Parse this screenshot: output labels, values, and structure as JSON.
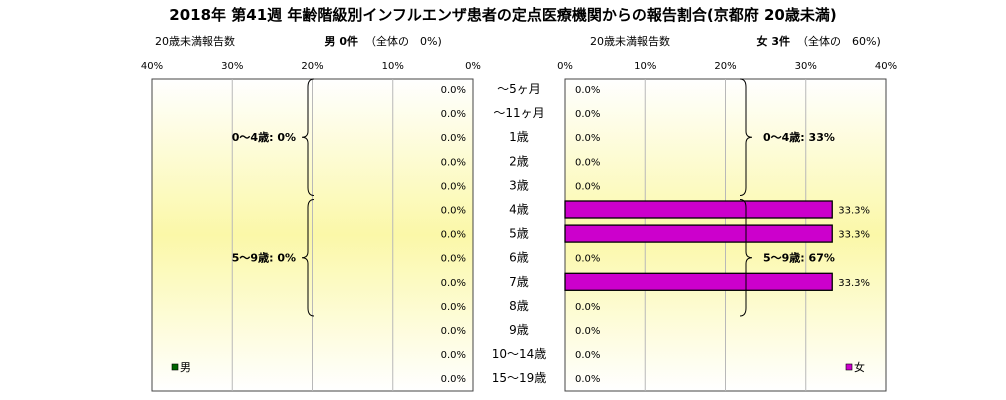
{
  "title": "2018年 第41週 年齢階級別インフルエンザ患者の定点医療機関からの報告割合(京都府 20歳未満)",
  "left_panel": {
    "subtitle": "20歳未満報告数",
    "summary_bold": "男 0件",
    "summary_rest": "（全体の　0%)",
    "legend": "男",
    "groups": [
      {
        "label": "0～4歳: 0%",
        "from": 0,
        "to": 5
      },
      {
        "label": "5～9歳: 0%",
        "from": 5,
        "to": 10
      }
    ]
  },
  "right_panel": {
    "subtitle": "20歳未満報告数",
    "summary_bold": "女 3件",
    "summary_rest": "（全体の　60%)",
    "legend": "女",
    "groups": [
      {
        "label": "0～4歳: 33%",
        "from": 0,
        "to": 5
      },
      {
        "label": "5～9歳: 67%",
        "from": 5,
        "to": 10
      }
    ]
  },
  "colors": {
    "male": "#006400",
    "female": "#cc00cc",
    "plot_gradient_edge": "#ffffff",
    "plot_gradient_center": "#fbf8a8"
  },
  "chart_data": {
    "type": "bar",
    "orientation": "horizontal-butterfly",
    "categories": [
      "～5ヶ月",
      "～11ヶ月",
      "1歳",
      "2歳",
      "3歳",
      "4歳",
      "5歳",
      "6歳",
      "7歳",
      "8歳",
      "9歳",
      "10～14歳",
      "15～19歳"
    ],
    "series": [
      {
        "name": "男",
        "values": [
          0,
          0,
          0,
          0,
          0,
          0,
          0,
          0,
          0,
          0,
          0,
          0,
          0
        ],
        "labels": [
          "0.0%",
          "0.0%",
          "0.0%",
          "0.0%",
          "0.0%",
          "0.0%",
          "0.0%",
          "0.0%",
          "0.0%",
          "0.0%",
          "0.0%",
          "0.0%",
          "0.0%"
        ]
      },
      {
        "name": "女",
        "values": [
          0,
          0,
          0,
          0,
          0,
          33.3,
          33.3,
          0,
          33.3,
          0,
          0,
          0,
          0
        ],
        "labels": [
          "0.0%",
          "0.0%",
          "0.0%",
          "0.0%",
          "0.0%",
          "33.3%",
          "33.3%",
          "0.0%",
          "33.3%",
          "0.0%",
          "0.0%",
          "0.0%",
          "0.0%"
        ]
      }
    ],
    "xlim": [
      0,
      40
    ],
    "ticks": [
      "0%",
      "10%",
      "20%",
      "30%",
      "40%"
    ],
    "grid": true,
    "legend_position": "bottom"
  }
}
